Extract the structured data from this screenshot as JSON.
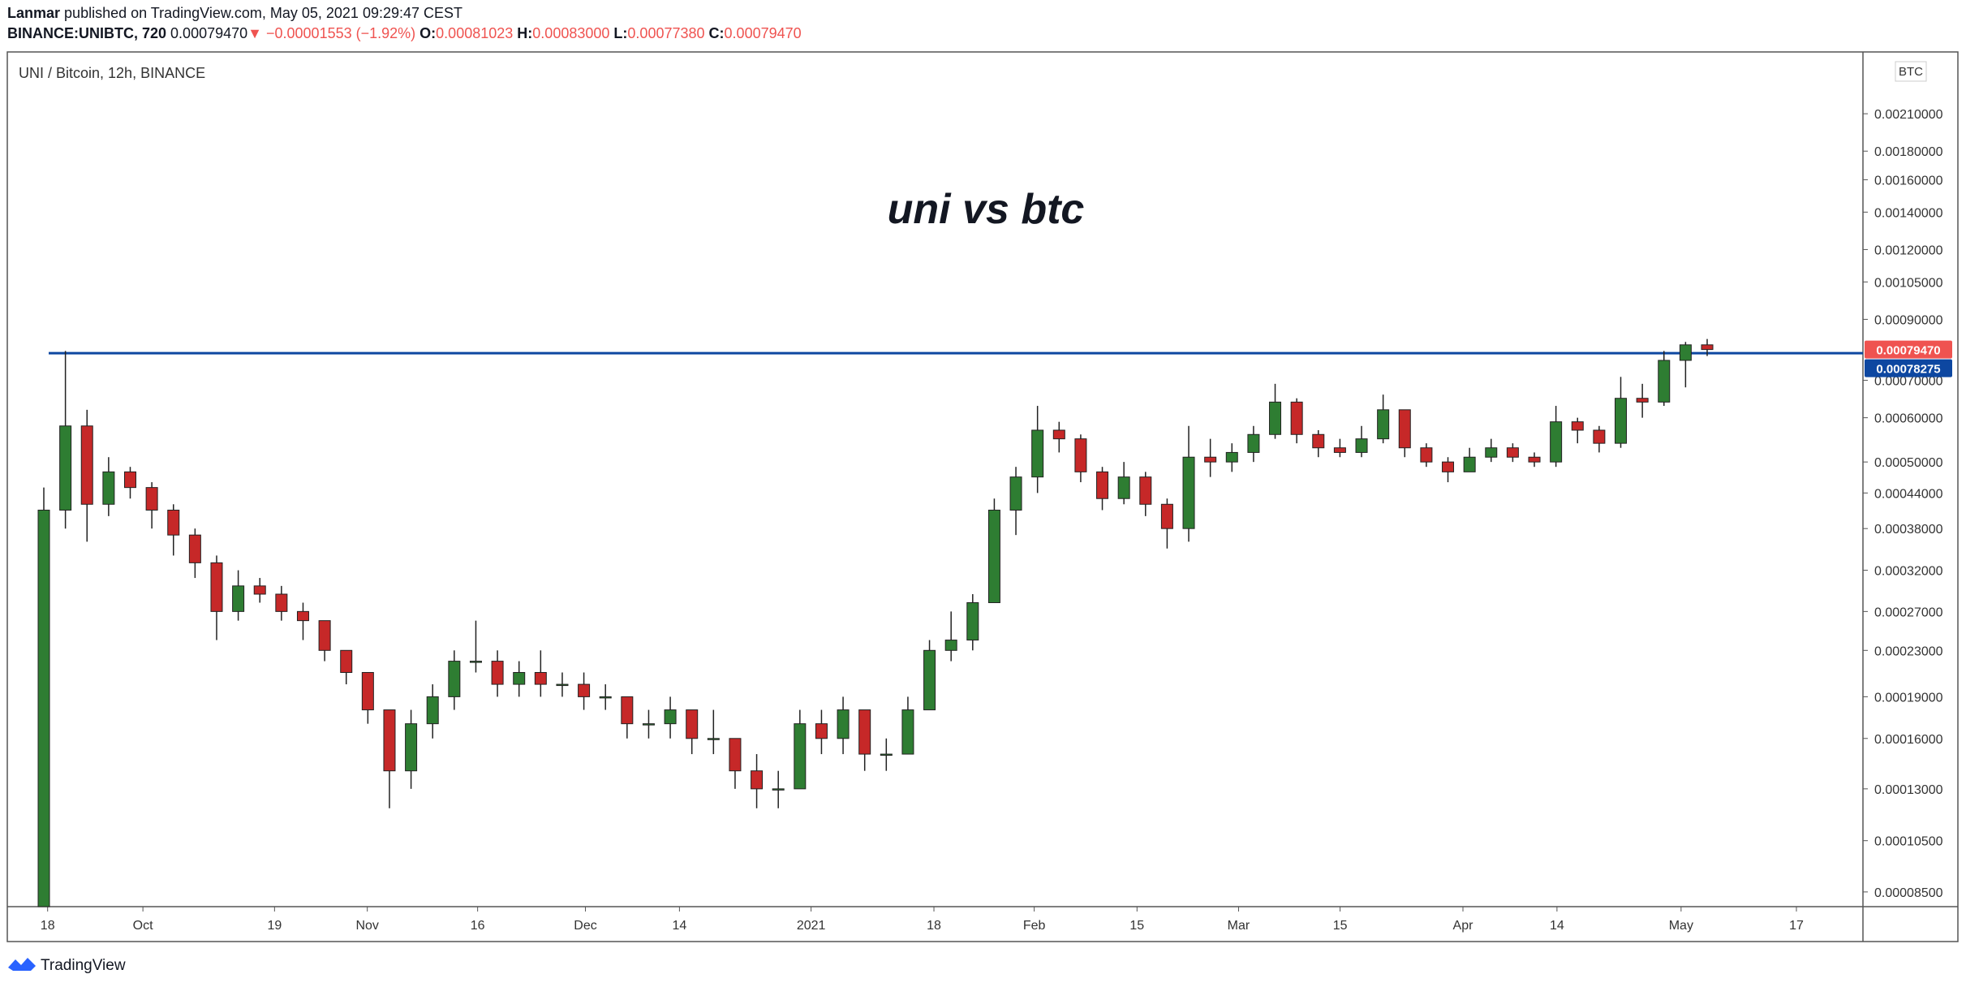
{
  "header": {
    "author": "Lanmar",
    "published": "published on TradingView.com, May 05, 2021 09:29:47 CEST",
    "symbol": "BINANCE:UNIBTC, 720",
    "price": "0.00079470",
    "arrow": "▼",
    "change": "−0.00001553 (−1.92%)",
    "ohlc": [
      {
        "key": "O:",
        "value": "0.00081023"
      },
      {
        "key": "H:",
        "value": "0.00083000"
      },
      {
        "key": "L:",
        "value": "0.00077380"
      },
      {
        "key": "C:",
        "value": "0.00079470"
      }
    ]
  },
  "chart_data": {
    "type": "candlestick",
    "title": "UNI / Bitcoin, 12h, BINANCE",
    "annotation": "uni vs btc",
    "y_unit": "BTC",
    "log_scale": true,
    "up_color": "#2e7d32",
    "down_color": "#c62828",
    "wick_color": "#222222",
    "ylim": [
      8e-05,
      0.0027
    ],
    "yticks": [
      {
        "value": 0.0021,
        "label": "0.00210000"
      },
      {
        "value": 0.0018,
        "label": "0.00180000"
      },
      {
        "value": 0.0016,
        "label": "0.00160000"
      },
      {
        "value": 0.0014,
        "label": "0.00140000"
      },
      {
        "value": 0.0012,
        "label": "0.00120000"
      },
      {
        "value": 0.00105,
        "label": "0.00105000"
      },
      {
        "value": 0.0009,
        "label": "0.00090000"
      },
      {
        "value": 0.0007,
        "label": "0.00070000"
      },
      {
        "value": 0.0006,
        "label": "0.00060000"
      },
      {
        "value": 0.0005,
        "label": "0.00050000"
      },
      {
        "value": 0.00044,
        "label": "0.00044000"
      },
      {
        "value": 0.00038,
        "label": "0.00038000"
      },
      {
        "value": 0.00032,
        "label": "0.00032000"
      },
      {
        "value": 0.00027,
        "label": "0.00027000"
      },
      {
        "value": 0.00023,
        "label": "0.00023000"
      },
      {
        "value": 0.00019,
        "label": "0.00019000"
      },
      {
        "value": 0.00016,
        "label": "0.00016000"
      },
      {
        "value": 0.00013,
        "label": "0.00013000"
      },
      {
        "value": 0.000105,
        "label": "0.00010500"
      },
      {
        "value": 8.5e-05,
        "label": "0.00008500"
      }
    ],
    "xticks": [
      "18",
      "Oct",
      "19",
      "Nov",
      "16",
      "Dec",
      "14",
      "2021",
      "18",
      "Feb",
      "15",
      "Mar",
      "15",
      "Apr",
      "14",
      "May",
      "17"
    ],
    "last_price": {
      "value": 0.0007947,
      "label": "0.00079470",
      "color": "#ef5350"
    },
    "hline": {
      "value": 0.00078275,
      "label": "0.00078275",
      "color": "#0d47a1"
    },
    "candles": [
      [
        8e-05,
        0.00045,
        8e-05,
        0.00041
      ],
      [
        0.00041,
        0.00079,
        0.00038,
        0.00058
      ],
      [
        0.00058,
        0.00062,
        0.00036,
        0.00042
      ],
      [
        0.00042,
        0.00051,
        0.0004,
        0.00048
      ],
      [
        0.00048,
        0.00049,
        0.00043,
        0.00045
      ],
      [
        0.00045,
        0.00046,
        0.00038,
        0.00041
      ],
      [
        0.00041,
        0.00042,
        0.00034,
        0.00037
      ],
      [
        0.00037,
        0.00038,
        0.00031,
        0.00033
      ],
      [
        0.00033,
        0.00034,
        0.00024,
        0.00027
      ],
      [
        0.00027,
        0.00032,
        0.00026,
        0.0003
      ],
      [
        0.0003,
        0.00031,
        0.00028,
        0.00029
      ],
      [
        0.00029,
        0.0003,
        0.00026,
        0.00027
      ],
      [
        0.00027,
        0.00028,
        0.00024,
        0.00026
      ],
      [
        0.00026,
        0.00026,
        0.00022,
        0.00023
      ],
      [
        0.00023,
        0.00023,
        0.0002,
        0.00021
      ],
      [
        0.00021,
        0.00021,
        0.00017,
        0.00018
      ],
      [
        0.00018,
        0.00018,
        0.00012,
        0.00014
      ],
      [
        0.00014,
        0.00018,
        0.00013,
        0.00017
      ],
      [
        0.00017,
        0.0002,
        0.00016,
        0.00019
      ],
      [
        0.00019,
        0.00023,
        0.00018,
        0.00022
      ],
      [
        0.00022,
        0.00026,
        0.00021,
        0.00022
      ],
      [
        0.00022,
        0.00023,
        0.00019,
        0.0002
      ],
      [
        0.0002,
        0.00022,
        0.00019,
        0.00021
      ],
      [
        0.00021,
        0.00023,
        0.00019,
        0.0002
      ],
      [
        0.0002,
        0.00021,
        0.00019,
        0.0002
      ],
      [
        0.0002,
        0.00021,
        0.00018,
        0.00019
      ],
      [
        0.00019,
        0.0002,
        0.00018,
        0.00019
      ],
      [
        0.00019,
        0.00019,
        0.00016,
        0.00017
      ],
      [
        0.00017,
        0.00018,
        0.00016,
        0.00017
      ],
      [
        0.00017,
        0.00019,
        0.00016,
        0.00018
      ],
      [
        0.00018,
        0.00018,
        0.00015,
        0.00016
      ],
      [
        0.00016,
        0.00018,
        0.00015,
        0.00016
      ],
      [
        0.00016,
        0.00016,
        0.00013,
        0.00014
      ],
      [
        0.00014,
        0.00015,
        0.00012,
        0.00013
      ],
      [
        0.00013,
        0.00014,
        0.00012,
        0.00013
      ],
      [
        0.00013,
        0.00018,
        0.00013,
        0.00017
      ],
      [
        0.00017,
        0.00018,
        0.00015,
        0.00016
      ],
      [
        0.00016,
        0.00019,
        0.00015,
        0.00018
      ],
      [
        0.00018,
        0.00018,
        0.00014,
        0.00015
      ],
      [
        0.00015,
        0.00016,
        0.00014,
        0.00015
      ],
      [
        0.00015,
        0.00019,
        0.00015,
        0.00018
      ],
      [
        0.00018,
        0.00024,
        0.00018,
        0.00023
      ],
      [
        0.00023,
        0.00027,
        0.00022,
        0.00024
      ],
      [
        0.00024,
        0.00029,
        0.00023,
        0.00028
      ],
      [
        0.00028,
        0.00043,
        0.00028,
        0.00041
      ],
      [
        0.00041,
        0.00049,
        0.00037,
        0.00047
      ],
      [
        0.00047,
        0.00063,
        0.00044,
        0.00057
      ],
      [
        0.00057,
        0.00059,
        0.00052,
        0.00055
      ],
      [
        0.00055,
        0.00056,
        0.00046,
        0.00048
      ],
      [
        0.00048,
        0.00049,
        0.00041,
        0.00043
      ],
      [
        0.00043,
        0.0005,
        0.00042,
        0.00047
      ],
      [
        0.00047,
        0.00048,
        0.0004,
        0.00042
      ],
      [
        0.00042,
        0.00043,
        0.00035,
        0.00038
      ],
      [
        0.00038,
        0.00058,
        0.00036,
        0.00051
      ],
      [
        0.00051,
        0.00055,
        0.00047,
        0.0005
      ],
      [
        0.0005,
        0.00054,
        0.00048,
        0.00052
      ],
      [
        0.00052,
        0.00058,
        0.0005,
        0.00056
      ],
      [
        0.00056,
        0.00069,
        0.00055,
        0.00064
      ],
      [
        0.00064,
        0.00065,
        0.00054,
        0.00056
      ],
      [
        0.00056,
        0.00057,
        0.00051,
        0.00053
      ],
      [
        0.00053,
        0.00055,
        0.00051,
        0.00052
      ],
      [
        0.00052,
        0.00058,
        0.00051,
        0.00055
      ],
      [
        0.00055,
        0.00066,
        0.00054,
        0.00062
      ],
      [
        0.00062,
        0.00062,
        0.00051,
        0.00053
      ],
      [
        0.00053,
        0.00054,
        0.00049,
        0.0005
      ],
      [
        0.0005,
        0.00051,
        0.00046,
        0.00048
      ],
      [
        0.00048,
        0.00053,
        0.00048,
        0.00051
      ],
      [
        0.00051,
        0.00055,
        0.0005,
        0.00053
      ],
      [
        0.00053,
        0.00054,
        0.0005,
        0.00051
      ],
      [
        0.00051,
        0.00052,
        0.00049,
        0.0005
      ],
      [
        0.0005,
        0.00063,
        0.00049,
        0.00059
      ],
      [
        0.00059,
        0.0006,
        0.00054,
        0.00057
      ],
      [
        0.00057,
        0.00058,
        0.00052,
        0.00054
      ],
      [
        0.00054,
        0.00071,
        0.00053,
        0.00065
      ],
      [
        0.00065,
        0.00069,
        0.0006,
        0.00064
      ],
      [
        0.00064,
        0.00079,
        0.00063,
        0.00076
      ],
      [
        0.00076,
        0.00082,
        0.00068,
        0.00081023
      ],
      [
        0.00081023,
        0.00083,
        0.0007738,
        0.0007947
      ]
    ]
  }
}
